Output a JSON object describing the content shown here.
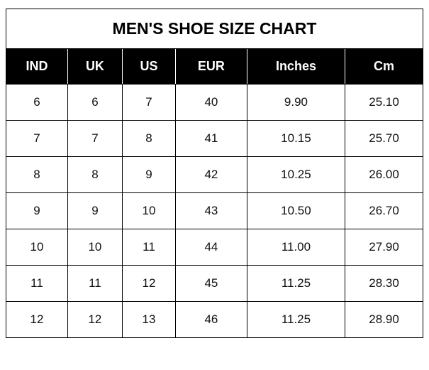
{
  "chart": {
    "type": "table",
    "title": "MEN'S SHOE SIZE CHART",
    "columns": [
      "IND",
      "UK",
      "US",
      "EUR",
      "Inches",
      "Cm"
    ],
    "rows": [
      [
        "6",
        "6",
        "7",
        "40",
        "9.90",
        "25.10"
      ],
      [
        "7",
        "7",
        "8",
        "41",
        "10.15",
        "25.70"
      ],
      [
        "8",
        "8",
        "9",
        "42",
        "10.25",
        "26.00"
      ],
      [
        "9",
        "9",
        "10",
        "43",
        "10.50",
        "26.70"
      ],
      [
        "10",
        "10",
        "11",
        "44",
        "11.00",
        "27.90"
      ],
      [
        "11",
        "11",
        "12",
        "45",
        "11.25",
        "28.30"
      ],
      [
        "12",
        "12",
        "13",
        "46",
        "11.25",
        "28.90"
      ]
    ],
    "title_fontsize": 23,
    "header_fontsize": 18,
    "cell_fontsize": 17,
    "header_bg": "#000000",
    "header_fg": "#ffffff",
    "cell_bg": "#ffffff",
    "cell_fg": "#111111",
    "border_color": "#000000",
    "header_inner_border": "#ffffff",
    "column_align": [
      "center",
      "center",
      "center",
      "center",
      "center",
      "center"
    ]
  }
}
